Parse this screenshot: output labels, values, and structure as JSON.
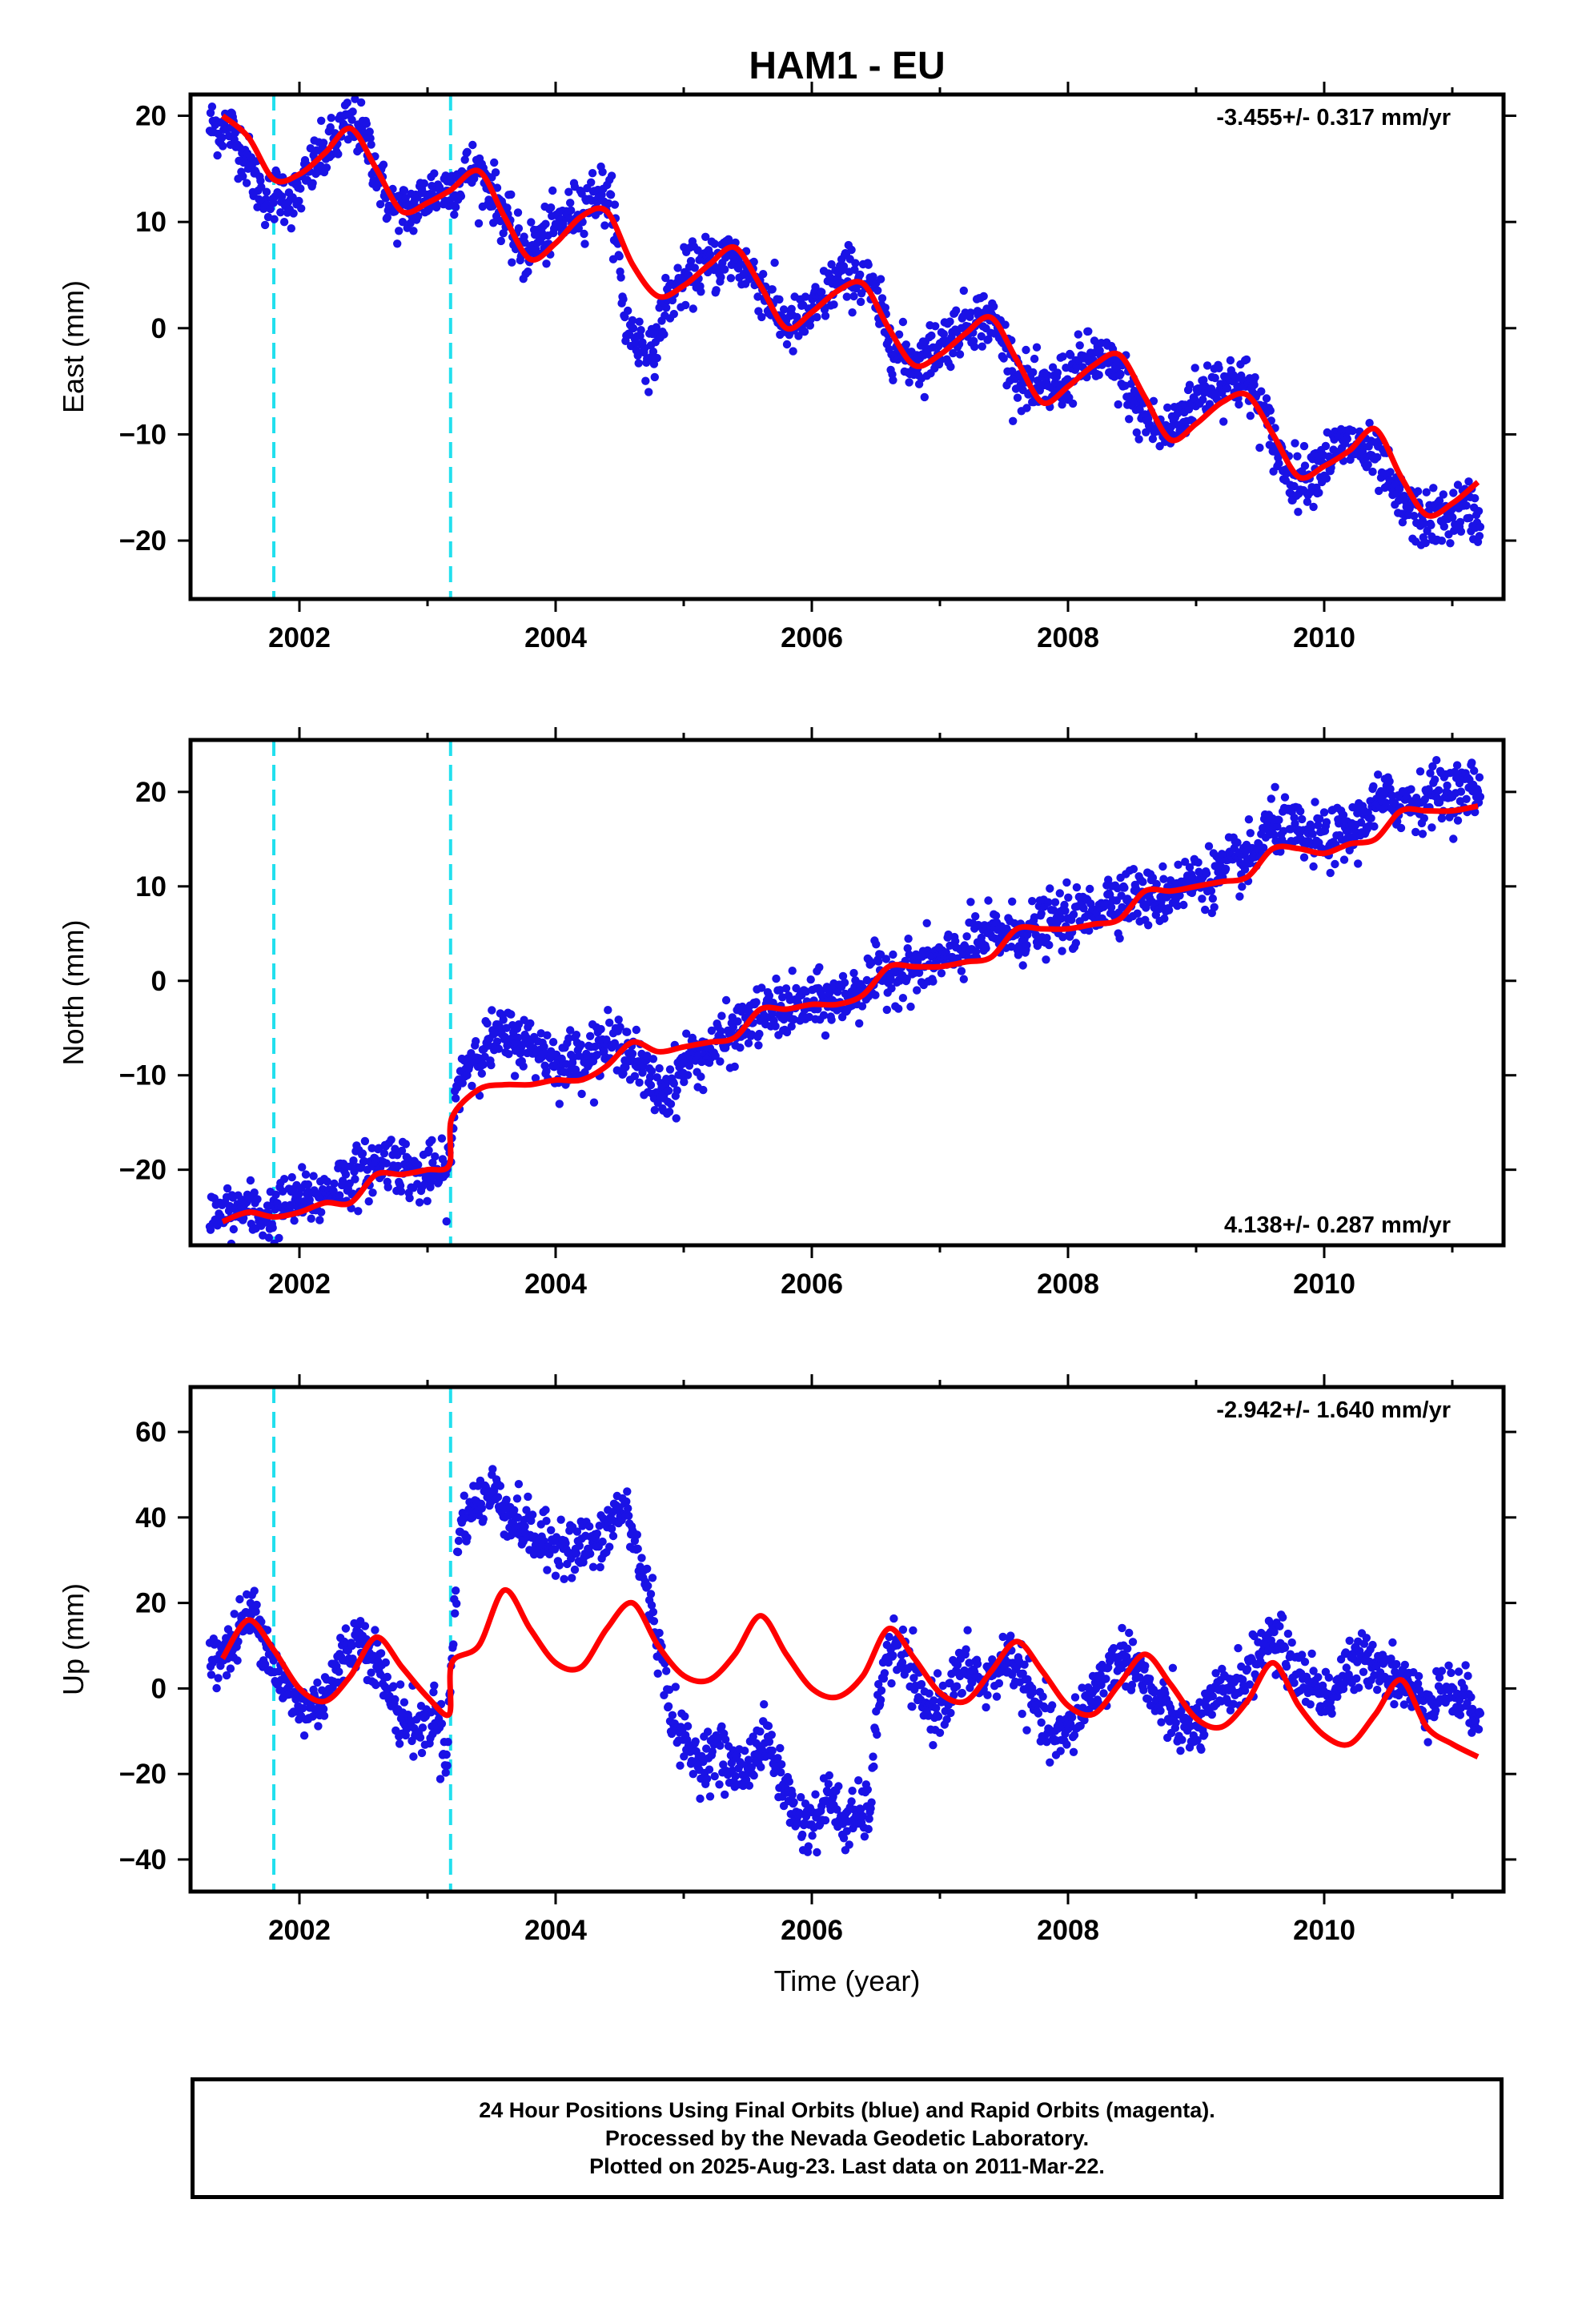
{
  "title": "HAM1 - EU",
  "xlabel": "Time (year)",
  "colors": {
    "points": "#1a12e6",
    "model": "#ff0000",
    "breaks": "#22e0ee",
    "frame": "#000000"
  },
  "footer": {
    "line1": "24 Hour Positions Using Final Orbits (blue) and Rapid Orbits (magenta).",
    "line2": "Processed by the Nevada Geodetic Laboratory.",
    "line3": "Plotted on 2025-Aug-23. Last data on 2011-Mar-22."
  },
  "chart_data": [
    {
      "type": "scatter",
      "ylabel": "East (mm)",
      "rate_label": "-3.455+/- 0.317 mm/yr",
      "rate_position": "top-right",
      "xlim": [
        2001.15,
        2011.4
      ],
      "ylim": [
        -25.5,
        22
      ],
      "xticks": [
        2002,
        2004,
        2006,
        2008,
        2010
      ],
      "yticks": [
        20,
        10,
        0,
        -10,
        -20
      ],
      "breaks": [
        2001.8,
        2003.18
      ],
      "series": [
        {
          "kind": "points",
          "x": [
            2001.45,
            2001.55,
            2001.65,
            2001.75,
            2001.85,
            2001.95,
            2002.05,
            2002.15,
            2002.25,
            2002.35,
            2002.45,
            2002.55,
            2002.65,
            2002.75,
            2002.85,
            2002.95,
            2003.05,
            2003.15,
            2003.25,
            2003.35,
            2003.45,
            2003.55,
            2003.65,
            2003.75,
            2003.85,
            2003.95,
            2004.05,
            2004.15,
            2004.25,
            2004.35,
            2004.45,
            2004.55,
            2004.65,
            2004.75,
            2004.85,
            2004.95,
            2005.05,
            2005.15,
            2005.25,
            2005.35,
            2005.45,
            2005.55,
            2005.65,
            2005.75,
            2005.85,
            2005.95,
            2006.05,
            2006.15,
            2006.25,
            2006.35,
            2006.45,
            2006.55,
            2006.65,
            2006.75,
            2006.85,
            2006.95,
            2007.05,
            2007.15,
            2007.25,
            2007.35,
            2007.45,
            2007.55,
            2007.65,
            2007.75,
            2007.85,
            2007.95,
            2008.05,
            2008.15,
            2008.25,
            2008.35,
            2008.45,
            2008.55,
            2008.65,
            2008.75,
            2008.85,
            2008.95,
            2009.05,
            2009.15,
            2009.25,
            2009.35,
            2009.45,
            2009.55,
            2009.65,
            2009.75,
            2009.85,
            2009.95,
            2010.05,
            2010.15,
            2010.25,
            2010.35,
            2010.45,
            2010.55,
            2010.65,
            2010.75,
            2010.85,
            2010.95,
            2011.05,
            2011.15,
            2011.2
          ],
          "y": [
            19,
            17,
            14,
            12,
            13,
            12,
            14,
            16,
            17,
            19,
            19,
            17,
            13,
            11,
            11,
            12,
            13,
            13,
            14,
            15,
            14,
            12,
            9,
            7,
            8,
            9,
            10,
            11,
            12,
            13,
            11,
            0,
            -1,
            -3,
            2,
            4,
            5,
            6,
            6,
            7,
            6,
            5,
            3,
            1,
            0,
            1,
            2,
            4,
            5,
            5,
            4,
            1,
            -2,
            -3,
            -3,
            -2,
            -1,
            0,
            1,
            1,
            0,
            -3,
            -5,
            -6,
            -6,
            -5,
            -4,
            -3,
            -3,
            -4,
            -5,
            -8,
            -9,
            -10,
            -9,
            -7,
            -6,
            -5,
            -5,
            -5,
            -6,
            -9,
            -12,
            -14,
            -14,
            -13,
            -12,
            -11,
            -11,
            -12,
            -13,
            -16,
            -17,
            -18,
            -18,
            -18,
            -17,
            -17,
            -18
          ]
        },
        {
          "kind": "line",
          "x": [
            2001.4,
            2001.6,
            2001.8,
            2002.0,
            2002.2,
            2002.4,
            2002.6,
            2002.8,
            2003.0,
            2003.18,
            2003.4,
            2003.6,
            2003.8,
            2004.0,
            2004.2,
            2004.4,
            2004.6,
            2004.8,
            2005.0,
            2005.2,
            2005.4,
            2005.6,
            2005.8,
            2006.0,
            2006.2,
            2006.4,
            2006.6,
            2006.8,
            2007.0,
            2007.2,
            2007.4,
            2007.6,
            2007.8,
            2008.0,
            2008.2,
            2008.4,
            2008.6,
            2008.8,
            2009.0,
            2009.2,
            2009.4,
            2009.6,
            2009.8,
            2010.0,
            2010.2,
            2010.4,
            2010.6,
            2010.8,
            2011.0,
            2011.2
          ],
          "y": [
            20,
            18,
            14,
            14.5,
            16.5,
            18.8,
            15,
            11,
            11.8,
            13,
            14.8,
            10.5,
            6.5,
            8,
            10.5,
            11,
            6,
            3,
            4,
            6,
            7.6,
            4,
            0,
            1.5,
            3.5,
            4.2,
            0,
            -3.5,
            -2.5,
            -0.5,
            1,
            -3,
            -7,
            -5.5,
            -3.5,
            -2.5,
            -6.5,
            -10.5,
            -9,
            -7,
            -6.3,
            -10,
            -14,
            -13,
            -11.5,
            -9.5,
            -14,
            -17.6,
            -16.5,
            -14.5
          ]
        }
      ]
    },
    {
      "type": "scatter",
      "ylabel": "North (mm)",
      "rate_label": "4.138+/- 0.287 mm/yr",
      "rate_position": "bottom-right",
      "xlim": [
        2001.15,
        2011.4
      ],
      "ylim": [
        -28,
        25.5
      ],
      "xticks": [
        2002,
        2004,
        2006,
        2008,
        2010
      ],
      "yticks": [
        20,
        10,
        0,
        -10,
        -20
      ],
      "breaks": [
        2001.8,
        2003.18
      ],
      "series": [
        {
          "kind": "points",
          "x": [
            2001.45,
            2001.55,
            2001.65,
            2001.75,
            2001.85,
            2001.95,
            2002.05,
            2002.15,
            2002.25,
            2002.35,
            2002.45,
            2002.55,
            2002.65,
            2002.75,
            2002.85,
            2002.95,
            2003.05,
            2003.15,
            2003.25,
            2003.35,
            2003.45,
            2003.55,
            2003.65,
            2003.75,
            2003.85,
            2003.95,
            2004.05,
            2004.15,
            2004.25,
            2004.35,
            2004.45,
            2004.55,
            2004.65,
            2004.75,
            2004.85,
            2004.95,
            2005.05,
            2005.15,
            2005.25,
            2005.35,
            2005.45,
            2005.55,
            2005.65,
            2005.75,
            2005.85,
            2005.95,
            2006.05,
            2006.15,
            2006.25,
            2006.35,
            2006.45,
            2006.55,
            2006.65,
            2006.75,
            2006.85,
            2006.95,
            2007.05,
            2007.15,
            2007.25,
            2007.35,
            2007.45,
            2007.55,
            2007.65,
            2007.75,
            2007.85,
            2007.95,
            2008.05,
            2008.15,
            2008.25,
            2008.35,
            2008.45,
            2008.55,
            2008.65,
            2008.75,
            2008.85,
            2008.95,
            2009.05,
            2009.15,
            2009.25,
            2009.35,
            2009.45,
            2009.55,
            2009.65,
            2009.75,
            2009.85,
            2009.95,
            2010.05,
            2010.15,
            2010.25,
            2010.35,
            2010.45,
            2010.55,
            2010.65,
            2010.75,
            2010.85,
            2010.95,
            2011.05,
            2011.15,
            2011.2
          ],
          "y": [
            -25,
            -24,
            -24.5,
            -25,
            -24,
            -23.5,
            -23,
            -23,
            -22,
            -21,
            -20.5,
            -20,
            -19,
            -19,
            -20,
            -21,
            -20,
            -21,
            -10,
            -8,
            -7,
            -6,
            -6,
            -6.5,
            -7,
            -8,
            -9,
            -8,
            -7.5,
            -7,
            -7,
            -6.5,
            -9,
            -11,
            -12,
            -10,
            -8,
            -8,
            -7,
            -6,
            -5,
            -4,
            -3.5,
            -3,
            -3,
            -2.5,
            -2.5,
            -2,
            -2,
            -1,
            0,
            0.5,
            1,
            1,
            1.5,
            2,
            2,
            3,
            4,
            4.5,
            5,
            5,
            5,
            5.5,
            6,
            6.5,
            6.5,
            7,
            8,
            9,
            9,
            9,
            8.5,
            9,
            10,
            10.5,
            11,
            11,
            12,
            12.5,
            13,
            16,
            16.5,
            16,
            15,
            15,
            15,
            15.5,
            16,
            18,
            19,
            19,
            19,
            19,
            20,
            20,
            20,
            20.5,
            20
          ]
        },
        {
          "kind": "line",
          "x": [
            2001.4,
            2001.6,
            2001.8,
            2002.0,
            2002.2,
            2002.4,
            2002.6,
            2002.8,
            2003.0,
            2003.17,
            2003.19,
            2003.4,
            2003.6,
            2003.8,
            2004.0,
            2004.2,
            2004.4,
            2004.6,
            2004.8,
            2005.0,
            2005.2,
            2005.4,
            2005.6,
            2005.8,
            2006.0,
            2006.2,
            2006.4,
            2006.6,
            2006.8,
            2007.0,
            2007.2,
            2007.4,
            2007.6,
            2007.8,
            2008.0,
            2008.2,
            2008.4,
            2008.6,
            2008.8,
            2009.0,
            2009.2,
            2009.4,
            2009.6,
            2009.8,
            2010.0,
            2010.2,
            2010.4,
            2010.6,
            2010.8,
            2011.0,
            2011.2
          ],
          "y": [
            -25.5,
            -24.5,
            -25,
            -24.5,
            -23.5,
            -23.5,
            -20.5,
            -20.5,
            -20,
            -19.5,
            -14.5,
            -11.5,
            -11,
            -11,
            -10.5,
            -10.5,
            -9,
            -6.5,
            -7.5,
            -7,
            -6.5,
            -6,
            -3,
            -3,
            -2.5,
            -2.5,
            -1.5,
            1.5,
            1.5,
            1.5,
            2,
            2.5,
            5.5,
            5.5,
            5.5,
            6,
            6.5,
            9.5,
            9.5,
            10,
            10.5,
            11,
            14,
            14,
            13.5,
            14.5,
            15,
            18,
            18,
            18,
            18.5
          ]
        }
      ]
    },
    {
      "type": "scatter",
      "ylabel": "Up (mm)",
      "rate_label": "-2.942+/- 1.640 mm/yr",
      "rate_position": "top-right",
      "xlim": [
        2001.15,
        2011.4
      ],
      "ylim": [
        -47.5,
        70.5
      ],
      "xticks": [
        2002,
        2004,
        2006,
        2008,
        2010
      ],
      "yticks": [
        60,
        40,
        20,
        0,
        -20,
        -40
      ],
      "breaks": [
        2001.8,
        2003.18
      ],
      "series": [
        {
          "kind": "points",
          "x": [
            2001.45,
            2001.55,
            2001.65,
            2001.75,
            2001.85,
            2001.95,
            2002.05,
            2002.15,
            2002.25,
            2002.35,
            2002.45,
            2002.55,
            2002.65,
            2002.75,
            2002.85,
            2002.95,
            2003.05,
            2003.15,
            2003.25,
            2003.35,
            2003.45,
            2003.55,
            2003.65,
            2003.75,
            2003.85,
            2003.95,
            2004.05,
            2004.15,
            2004.25,
            2004.35,
            2004.45,
            2004.55,
            2004.65,
            2004.75,
            2004.85,
            2004.95,
            2005.05,
            2005.15,
            2005.25,
            2005.35,
            2005.45,
            2005.55,
            2005.65,
            2005.75,
            2005.85,
            2005.95,
            2006.05,
            2006.15,
            2006.25,
            2006.35,
            2006.45,
            2006.55,
            2006.65,
            2006.75,
            2006.85,
            2006.95,
            2007.05,
            2007.15,
            2007.25,
            2007.35,
            2007.45,
            2007.55,
            2007.65,
            2007.75,
            2007.85,
            2007.95,
            2008.05,
            2008.15,
            2008.25,
            2008.35,
            2008.45,
            2008.55,
            2008.65,
            2008.75,
            2008.85,
            2008.95,
            2009.05,
            2009.15,
            2009.25,
            2009.35,
            2009.45,
            2009.55,
            2009.65,
            2009.75,
            2009.85,
            2009.95,
            2010.05,
            2010.15,
            2010.25,
            2010.35,
            2010.45,
            2010.55,
            2010.65,
            2010.75,
            2010.85,
            2010.95,
            2011.05,
            2011.15,
            2011.2
          ],
          "y": [
            8,
            15,
            18,
            10,
            2,
            -3,
            -5,
            -3,
            2,
            8,
            12,
            10,
            3,
            -5,
            -8,
            -10,
            -5,
            -15,
            38,
            42,
            45,
            46,
            40,
            38,
            35,
            33,
            35,
            32,
            34,
            33,
            40,
            42,
            30,
            20,
            2,
            -10,
            -15,
            -17,
            -14,
            -18,
            -20,
            -15,
            -12,
            -20,
            -28,
            -32,
            -30,
            -25,
            -32,
            -30,
            -28,
            5,
            10,
            5,
            -3,
            -5,
            -2,
            3,
            5,
            0,
            5,
            8,
            2,
            -5,
            -10,
            -12,
            -8,
            -3,
            2,
            5,
            8,
            5,
            -2,
            -5,
            -8,
            -10,
            -8,
            -3,
            0,
            2,
            5,
            12,
            10,
            5,
            2,
            0,
            -2,
            3,
            5,
            8,
            5,
            3,
            0,
            -3,
            -2,
            0,
            -2,
            -4,
            -5
          ]
        },
        {
          "kind": "line",
          "x": [
            2001.4,
            2001.6,
            2001.8,
            2002.0,
            2002.2,
            2002.4,
            2002.6,
            2002.8,
            2003.0,
            2003.17,
            2003.19,
            2003.4,
            2003.6,
            2003.8,
            2004.0,
            2004.2,
            2004.4,
            2004.6,
            2004.8,
            2005.0,
            2005.2,
            2005.4,
            2005.6,
            2005.8,
            2006.0,
            2006.2,
            2006.4,
            2006.6,
            2006.8,
            2007.0,
            2007.2,
            2007.4,
            2007.6,
            2007.8,
            2008.0,
            2008.2,
            2008.4,
            2008.6,
            2008.8,
            2009.0,
            2009.2,
            2009.4,
            2009.6,
            2009.8,
            2010.0,
            2010.2,
            2010.4,
            2010.6,
            2010.8,
            2011.0,
            2011.2
          ],
          "y": [
            7,
            16,
            9,
            0,
            -3,
            3,
            12,
            5,
            -2,
            -6,
            6,
            10,
            23,
            14,
            6,
            5,
            14,
            20,
            10,
            3,
            2,
            8,
            17,
            8,
            0,
            -2,
            3,
            14,
            7,
            -1,
            -3,
            4,
            11,
            4,
            -4,
            -6,
            1,
            8,
            1,
            -7,
            -9,
            -3,
            6,
            -4,
            -11,
            -13,
            -6,
            2,
            -9,
            -13,
            -16
          ]
        }
      ]
    }
  ]
}
